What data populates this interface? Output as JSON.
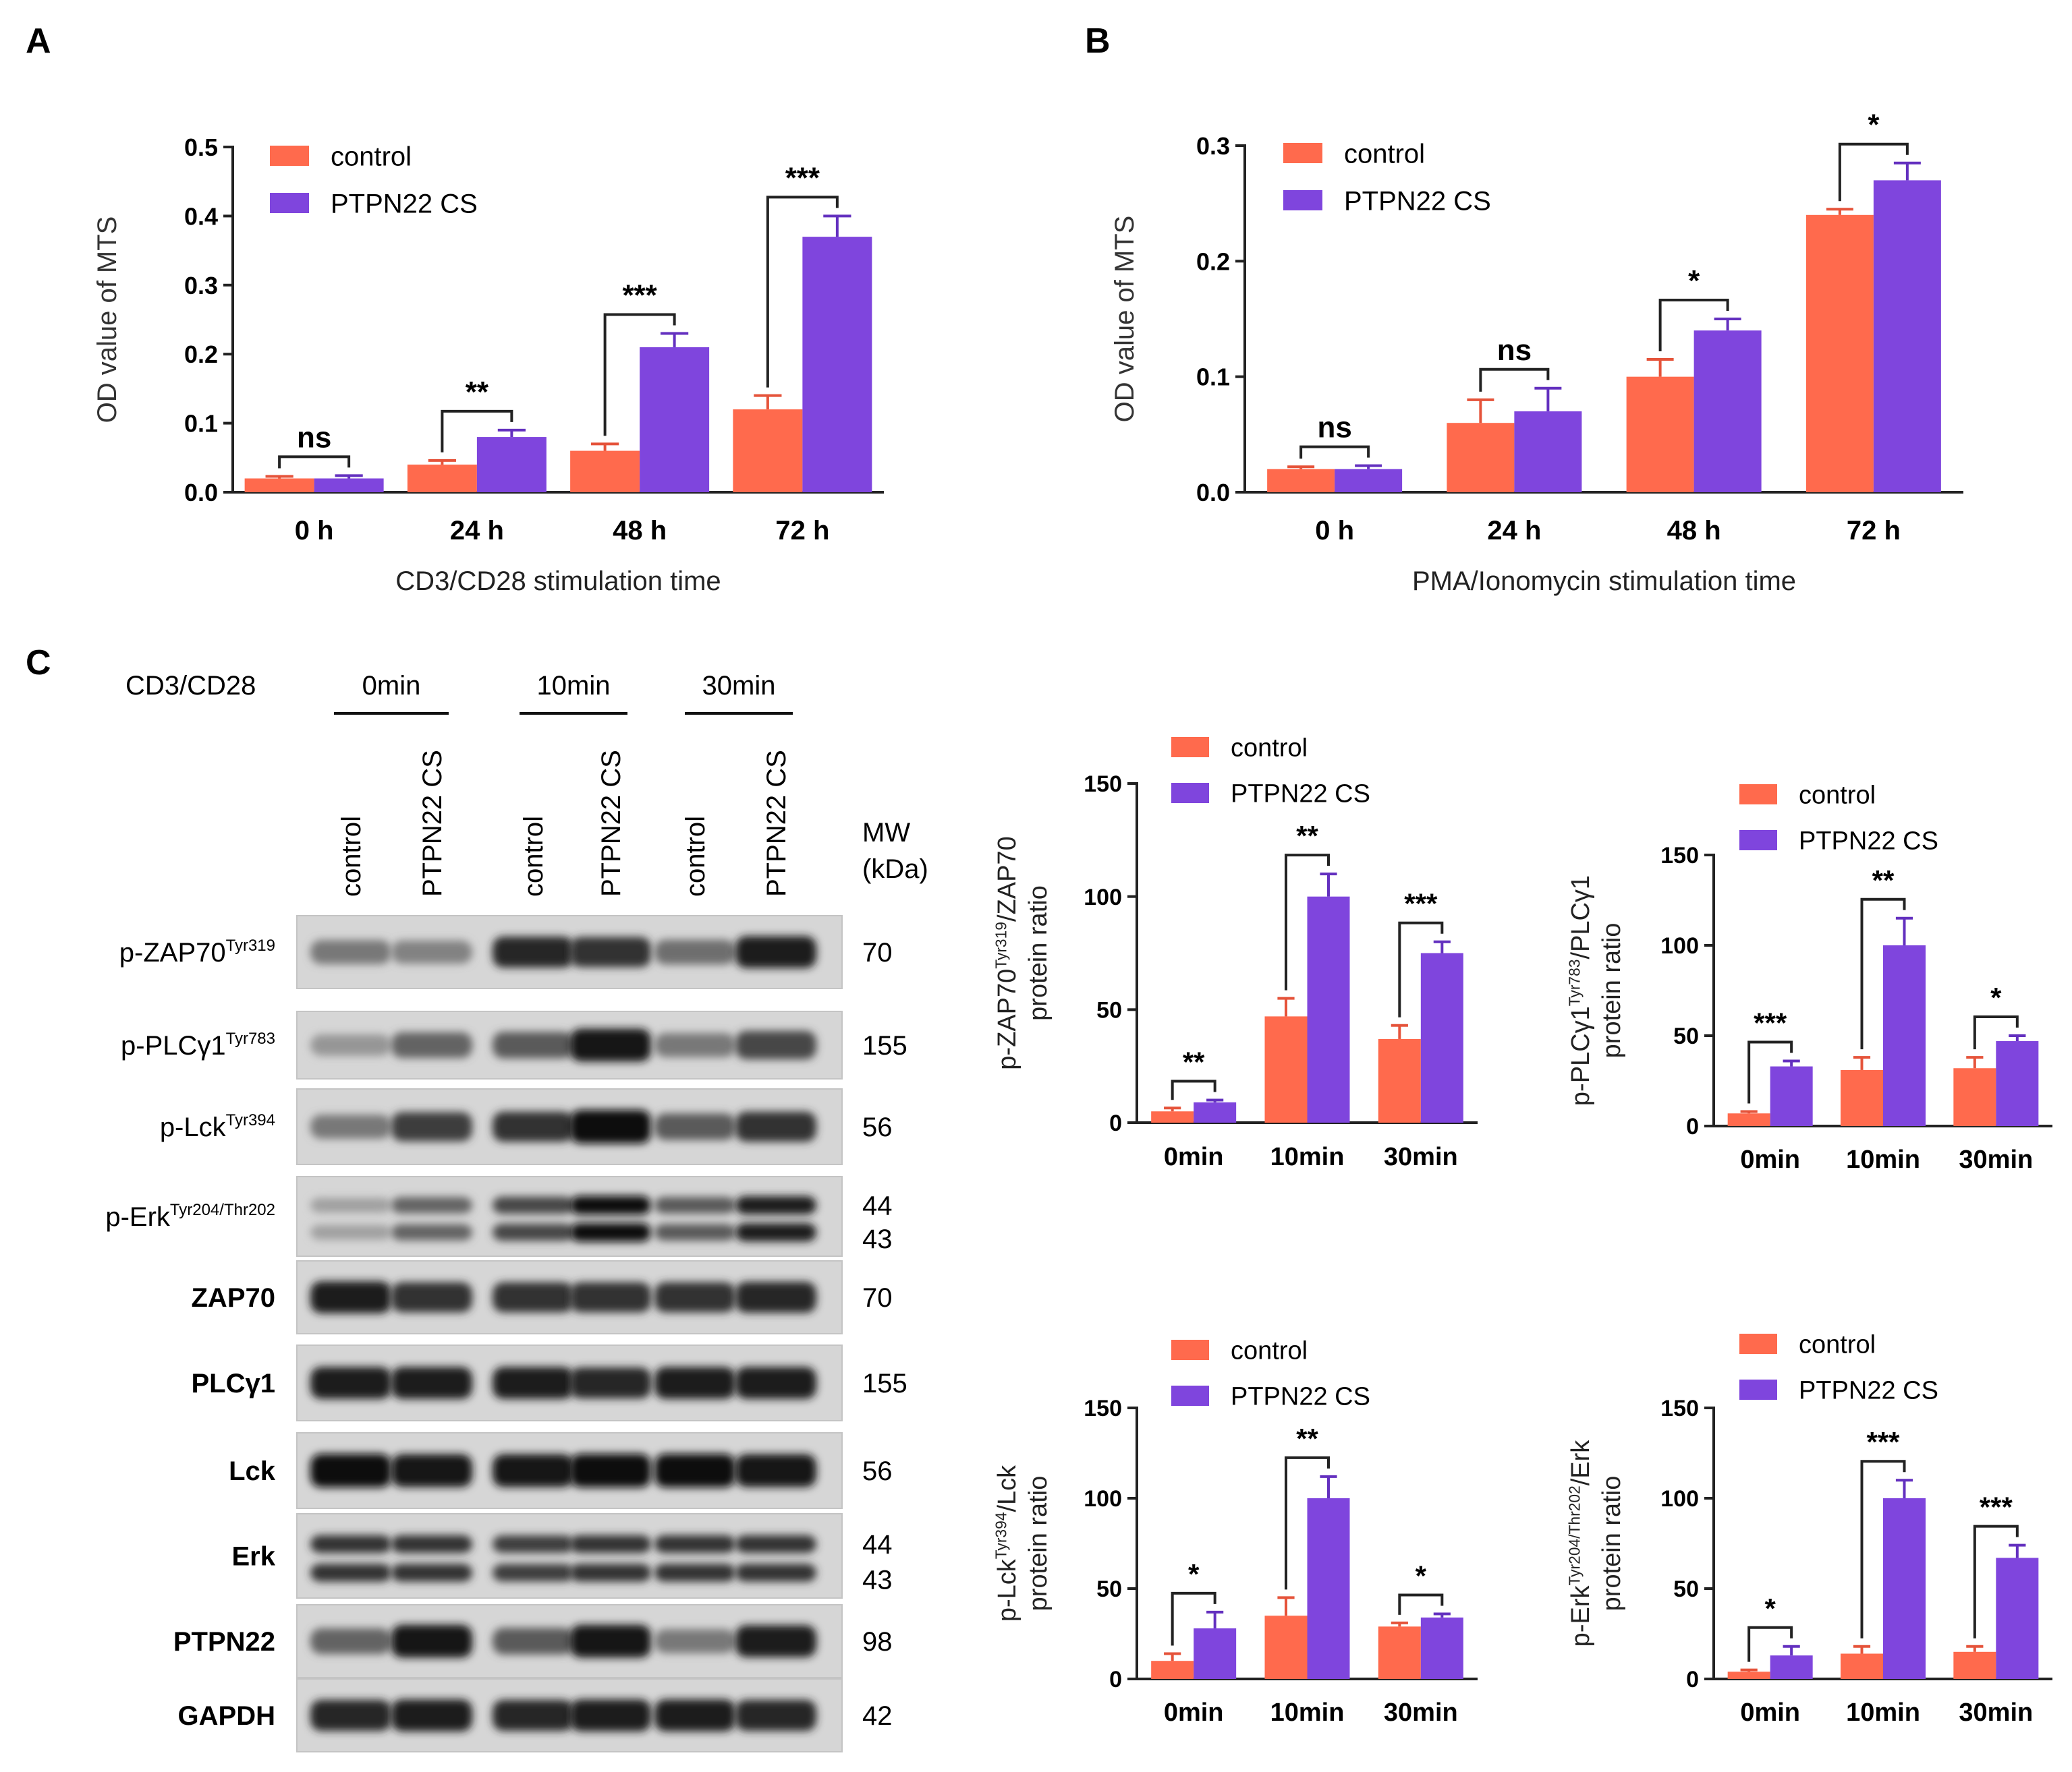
{
  "panel_labels": [
    "A",
    "B",
    "C"
  ],
  "colors": {
    "control": "#FF6A4D",
    "ptpn22": "#7F45DD",
    "control_err": "#E5533A",
    "ptpn22_err": "#6330BF",
    "axis": "#222222"
  },
  "chart_data": [
    {
      "id": "A",
      "type": "bar",
      "categories": [
        "0 h",
        "24 h",
        "48 h",
        "72 h"
      ],
      "series": [
        {
          "name": "control",
          "values": [
            0.02,
            0.04,
            0.06,
            0.12
          ],
          "errors": [
            0.003,
            0.006,
            0.01,
            0.02
          ]
        },
        {
          "name": "PTPN22 CS",
          "values": [
            0.02,
            0.08,
            0.21,
            0.37
          ],
          "errors": [
            0.004,
            0.01,
            0.02,
            0.03
          ]
        }
      ],
      "ylim": [
        0,
        0.5
      ],
      "yticks": [
        "0.0",
        "0.1",
        "0.2",
        "0.3",
        "0.4",
        "0.5"
      ],
      "ylabel": "OD value of MTS",
      "xlabel": "CD3/CD28 stimulation time",
      "significance": [
        "ns",
        "**",
        "***",
        "***"
      ],
      "legend": "top-left"
    },
    {
      "id": "B",
      "type": "bar",
      "categories": [
        "0 h",
        "24 h",
        "48 h",
        "72 h"
      ],
      "series": [
        {
          "name": "control",
          "values": [
            0.02,
            0.06,
            0.1,
            0.24
          ],
          "errors": [
            0.002,
            0.02,
            0.015,
            0.005
          ]
        },
        {
          "name": "PTPN22 CS",
          "values": [
            0.02,
            0.07,
            0.14,
            0.27
          ],
          "errors": [
            0.003,
            0.02,
            0.01,
            0.015
          ]
        }
      ],
      "ylim": [
        0,
        0.3
      ],
      "yticks": [
        "0.0",
        "0.1",
        "0.2",
        "0.3"
      ],
      "ylabel": "OD value of MTS",
      "xlabel": "PMA/Ionomycin stimulation time",
      "significance": [
        "ns",
        "ns",
        "*",
        "*"
      ],
      "legend": "top-left"
    },
    {
      "id": "C1",
      "type": "bar",
      "categories": [
        "0min",
        "10min",
        "30min"
      ],
      "series": [
        {
          "name": "control",
          "values": [
            5,
            47,
            37
          ],
          "errors": [
            1.5,
            8,
            6
          ]
        },
        {
          "name": "PTPN22 CS",
          "values": [
            9,
            100,
            75
          ],
          "errors": [
            1,
            10,
            5
          ]
        }
      ],
      "ylim": [
        0,
        150
      ],
      "yticks": [
        "0",
        "50",
        "100",
        "150"
      ],
      "ylabel_main": "p-ZAP70",
      "ylabel_sup": "Tyr319",
      "ylabel_tail": "/ZAP70",
      "ylabel_line2": "protein ratio",
      "significance": [
        "**",
        "**",
        "***"
      ],
      "legend": "top-center"
    },
    {
      "id": "C2",
      "type": "bar",
      "categories": [
        "0min",
        "10min",
        "30min"
      ],
      "series": [
        {
          "name": "control",
          "values": [
            7,
            31,
            32
          ],
          "errors": [
            1,
            7,
            6
          ]
        },
        {
          "name": "PTPN22 CS",
          "values": [
            33,
            100,
            47
          ],
          "errors": [
            3,
            15,
            3
          ]
        }
      ],
      "ylim": [
        0,
        150
      ],
      "yticks": [
        "0",
        "50",
        "100",
        "150"
      ],
      "ylabel_main": "p-PLCγ1",
      "ylabel_sup": "Tyr783",
      "ylabel_tail": "/PLCγ1",
      "ylabel_line2": "protein ratio",
      "significance": [
        "***",
        "**",
        "*"
      ],
      "legend": "top-center"
    },
    {
      "id": "C3",
      "type": "bar",
      "categories": [
        "0min",
        "10min",
        "30min"
      ],
      "series": [
        {
          "name": "control",
          "values": [
            10,
            35,
            29
          ],
          "errors": [
            4,
            10,
            2
          ]
        },
        {
          "name": "PTPN22 CS",
          "values": [
            28,
            100,
            34
          ],
          "errors": [
            9,
            12,
            2
          ]
        }
      ],
      "ylim": [
        0,
        150
      ],
      "yticks": [
        "0",
        "50",
        "100",
        "150"
      ],
      "ylabel_main": "p-Lck",
      "ylabel_sup": "Tyr394",
      "ylabel_tail": "/Lck",
      "ylabel_line2": "protein ratio",
      "significance": [
        "*",
        "**",
        "*"
      ],
      "legend": "top-center"
    },
    {
      "id": "C4",
      "type": "bar",
      "categories": [
        "0min",
        "10min",
        "30min"
      ],
      "series": [
        {
          "name": "control",
          "values": [
            4,
            14,
            15
          ],
          "errors": [
            1,
            4,
            3
          ]
        },
        {
          "name": "PTPN22 CS",
          "values": [
            13,
            100,
            67
          ],
          "errors": [
            5,
            10,
            7
          ]
        }
      ],
      "ylim": [
        0,
        150
      ],
      "yticks": [
        "0",
        "50",
        "100",
        "150"
      ],
      "ylabel_main": "p-Erk",
      "ylabel_sup": "Tyr204/Thr202",
      "ylabel_tail": "/Erk",
      "ylabel_line2": "protein ratio",
      "significance": [
        "*",
        "***",
        "***"
      ],
      "legend": "top-center"
    }
  ],
  "western": {
    "stim_label": "CD3/CD28",
    "timepoints": [
      "0min",
      "10min",
      "30min"
    ],
    "lanes": [
      "control",
      "PTPN22 CS",
      "control",
      "PTPN22 CS",
      "control",
      "PTPN22 CS"
    ],
    "mw_header": "MW",
    "mw_unit": "(kDa)",
    "blots": [
      {
        "label_main": "p-ZAP70",
        "label_sup": "Tyr319",
        "mw": [
          "70"
        ],
        "band_count": 1,
        "intensity": [
          0.45,
          0.4,
          0.85,
          0.8,
          0.5,
          0.9
        ]
      },
      {
        "label_main": "p-PLCγ1",
        "label_sup": "Tyr783",
        "mw": [
          "155"
        ],
        "band_count": 1,
        "intensity": [
          0.3,
          0.55,
          0.6,
          0.95,
          0.45,
          0.7
        ]
      },
      {
        "label_main": "p-Lck",
        "label_sup": "Tyr394",
        "mw": [
          "56"
        ],
        "band_count": 1,
        "intensity": [
          0.45,
          0.75,
          0.8,
          1.0,
          0.6,
          0.8
        ]
      },
      {
        "label_main": "p-Erk",
        "label_sup": "Tyr204/Thr202",
        "mw": [
          "44",
          "43"
        ],
        "band_count": 2,
        "intensity": [
          0.25,
          0.55,
          0.7,
          1.0,
          0.6,
          0.9
        ]
      },
      {
        "label_main": "ZAP70",
        "label_sup": "",
        "mw": [
          "70"
        ],
        "band_count": 1,
        "intensity": [
          0.9,
          0.8,
          0.8,
          0.8,
          0.8,
          0.85
        ]
      },
      {
        "label_main": "PLCγ1",
        "label_sup": "",
        "mw": [
          "155"
        ],
        "band_count": 1,
        "intensity": [
          0.9,
          0.9,
          0.9,
          0.85,
          0.9,
          0.9
        ]
      },
      {
        "label_main": "Lck",
        "label_sup": "",
        "mw": [
          "56"
        ],
        "band_count": 1,
        "intensity": [
          1.0,
          0.95,
          0.95,
          1.0,
          1.0,
          0.95
        ]
      },
      {
        "label_main": "Erk",
        "label_sup": "",
        "mw": [
          "44",
          "43"
        ],
        "band_count": 2,
        "intensity": [
          0.8,
          0.8,
          0.75,
          0.8,
          0.8,
          0.8
        ]
      },
      {
        "label_main": "PTPN22",
        "label_sup": "",
        "mw": [
          "98"
        ],
        "band_count": 1,
        "intensity": [
          0.55,
          0.95,
          0.6,
          0.95,
          0.45,
          0.9
        ]
      },
      {
        "label_main": "GAPDH",
        "label_sup": "",
        "mw": [
          "42"
        ],
        "band_count": 1,
        "intensity": [
          0.85,
          0.9,
          0.85,
          0.9,
          0.9,
          0.85
        ]
      }
    ]
  }
}
